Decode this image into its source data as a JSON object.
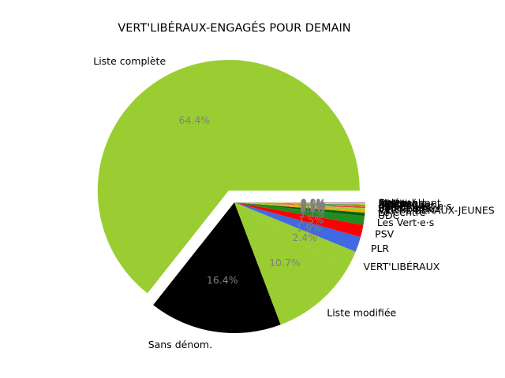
{
  "chart_data": {
    "type": "pie",
    "title": "VERT'LIBÉRAUX-ENGAGÉS POUR DEMAIN",
    "start_angle_deg": 0,
    "direction": "counterclockwise",
    "exploded": [
      "Liste complète"
    ],
    "slices": [
      {
        "label": "Liste complète",
        "pct_text": "64.4%",
        "value": 64.4,
        "color": "#9ACD32"
      },
      {
        "label": "Sans dénom.",
        "pct_text": "16.4%",
        "value": 16.4,
        "color": "#000000"
      },
      {
        "label": "Liste modifiée",
        "pct_text": "10.7%",
        "value": 10.7,
        "color": "#9ACD32"
      },
      {
        "label": "VERT'LIBÉRAUX",
        "pct_text": "2.4%",
        "value": 2.4,
        "color": "#9ACD32"
      },
      {
        "label": "PLR",
        "pct_text": "1.9%",
        "value": 1.9,
        "color": "#4169E1"
      },
      {
        "label": "PSV",
        "pct_text": "1.5%",
        "value": 1.5,
        "color": "#FF0000"
      },
      {
        "label": "Les Vert·e·s",
        "pct_text": "1.1%",
        "value": 1.1,
        "color": "#228B22"
      },
      {
        "label": "UDC",
        "pct_text": "0.4%",
        "value": 0.4,
        "color": "#006400"
      },
      {
        "label": "Le Centre",
        "pct_text": "0.3%",
        "value": 0.3,
        "color": "#FFA500"
      },
      {
        "label": "VERT'LIBÉRAUX-JEUNES",
        "pct_text": "0.2%",
        "value": 0.2,
        "color": "#9ACD32"
      },
      {
        "label": "Vert'libéraux",
        "pct_text": "0.1%",
        "value": 0.1,
        "color": "#9ACD32"
      },
      {
        "label": "Solidarités",
        "pct_text": "0.1%",
        "value": 0.1,
        "color": "#DC143C"
      },
      {
        "label": "PS",
        "pct_text": "0.1%",
        "value": 0.1,
        "color": "#FF6347"
      },
      {
        "label": "Jeunes Vert·e·s",
        "pct_text": "0.1%",
        "value": 0.1,
        "color": "#32CD32"
      },
      {
        "label": "UDC Jeunes",
        "pct_text": "0.1%",
        "value": 0.1,
        "color": "#2E8B57"
      },
      {
        "label": "PEV",
        "pct_text": "0.1%",
        "value": 0.1,
        "color": "#FFD700"
      },
      {
        "label": "Mobilité",
        "pct_text": "0.0%",
        "value": 0.04,
        "color": "#C8A000"
      },
      {
        "label": "PDC",
        "pct_text": "0.0%",
        "value": 0.03,
        "color": "#FF8C00"
      },
      {
        "label": "Pirates",
        "pct_text": "0.0%",
        "value": 0.03,
        "color": "#800080"
      },
      {
        "label": "Ensemble",
        "pct_text": "0.0%",
        "value": 0.02,
        "color": "#B8860B"
      },
      {
        "label": "Indépendant",
        "pct_text": "0.0%",
        "value": 0.02,
        "color": "#808080"
      },
      {
        "label": "Autre",
        "pct_text": "0.0%",
        "value": 0.02,
        "color": "#A9A9A9"
      }
    ]
  }
}
